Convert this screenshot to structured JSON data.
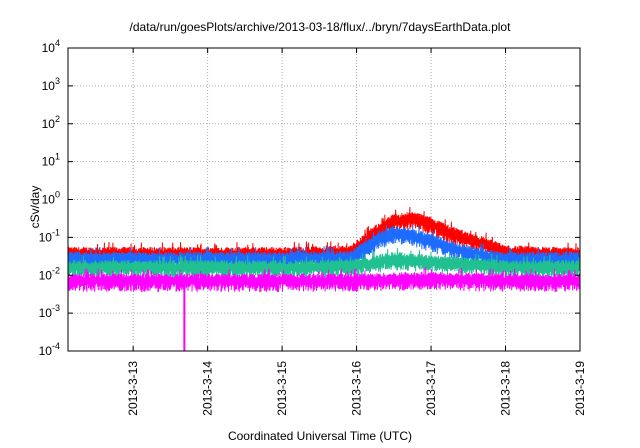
{
  "chart_data": {
    "type": "line",
    "title": "/data/run/goesPlots/archive/2013-03-18/flux/../bryn/7daysEarthData.plot",
    "xlabel": "Coordinated Universal Time (UTC)",
    "ylabel": "cSv/day",
    "yscale": "log",
    "ylim": [
      0.0001,
      10000
    ],
    "xlim": [
      "2013-03-12T03:00",
      "2013-03-19T00:00"
    ],
    "y_ticks": [
      {
        "value": 0.0001,
        "base": "10",
        "exp": "-4"
      },
      {
        "value": 0.001,
        "base": "10",
        "exp": "-3"
      },
      {
        "value": 0.01,
        "base": "10",
        "exp": "-2"
      },
      {
        "value": 0.1,
        "base": "10",
        "exp": "-1"
      },
      {
        "value": 1,
        "base": "10",
        "exp": "0"
      },
      {
        "value": 10,
        "base": "10",
        "exp": "1"
      },
      {
        "value": 100,
        "base": "10",
        "exp": "2"
      },
      {
        "value": 1000,
        "base": "10",
        "exp": "3"
      },
      {
        "value": 10000,
        "base": "10",
        "exp": "4"
      }
    ],
    "x_ticks": [
      "2013-3-13",
      "2013-3-14",
      "2013-3-15",
      "2013-3-16",
      "2013-3-17",
      "2013-3-18",
      "2013-3-19"
    ],
    "grid": true,
    "series": [
      {
        "color": "#ff0000",
        "x": [
          "2013-03-12T03:00",
          "2013-03-13T00:00",
          "2013-03-14T00:00",
          "2013-03-15T00:00",
          "2013-03-15T22:00",
          "2013-03-16T06:00",
          "2013-03-16T12:00",
          "2013-03-16T18:00",
          "2013-03-17T00:00",
          "2013-03-17T06:00",
          "2013-03-17T12:00",
          "2013-03-17T18:00",
          "2013-03-18T00:00",
          "2013-03-18T12:00",
          "2013-03-19T00:00"
        ],
        "y": [
          0.04,
          0.04,
          0.04,
          0.04,
          0.045,
          0.15,
          0.3,
          0.35,
          0.25,
          0.15,
          0.1,
          0.07,
          0.045,
          0.04,
          0.04
        ]
      },
      {
        "color": "#1e6cff",
        "x": [
          "2013-03-12T03:00",
          "2013-03-13T00:00",
          "2013-03-14T00:00",
          "2013-03-15T00:00",
          "2013-03-15T22:00",
          "2013-03-16T06:00",
          "2013-03-16T12:00",
          "2013-03-16T18:00",
          "2013-03-17T00:00",
          "2013-03-17T06:00",
          "2013-03-17T12:00",
          "2013-03-17T18:00",
          "2013-03-18T00:00",
          "2013-03-18T12:00",
          "2013-03-19T00:00"
        ],
        "y": [
          0.03,
          0.03,
          0.03,
          0.03,
          0.032,
          0.09,
          0.15,
          0.12,
          0.09,
          0.06,
          0.045,
          0.035,
          0.03,
          0.03,
          0.03
        ]
      },
      {
        "color": "#20c090",
        "x": [
          "2013-03-12T03:00",
          "2013-03-13T00:00",
          "2013-03-14T00:00",
          "2013-03-15T00:00",
          "2013-03-16T00:00",
          "2013-03-16T12:00",
          "2013-03-17T00:00",
          "2013-03-17T12:00",
          "2013-03-18T00:00",
          "2013-03-19T00:00"
        ],
        "y": [
          0.018,
          0.018,
          0.018,
          0.018,
          0.02,
          0.03,
          0.025,
          0.022,
          0.018,
          0.018
        ]
      },
      {
        "color": "#ff00ff",
        "x": [
          "2013-03-12T03:00",
          "2013-03-13T00:00",
          "2013-03-14T00:00",
          "2013-03-15T00:00",
          "2013-03-16T00:00",
          "2013-03-17T00:00",
          "2013-03-18T00:00",
          "2013-03-19T00:00"
        ],
        "y": [
          0.008,
          0.008,
          0.008,
          0.008,
          0.008,
          0.009,
          0.008,
          0.008
        ],
        "dropout": {
          "x": "2013-03-13T16:30",
          "y": 0.0001
        }
      }
    ]
  }
}
